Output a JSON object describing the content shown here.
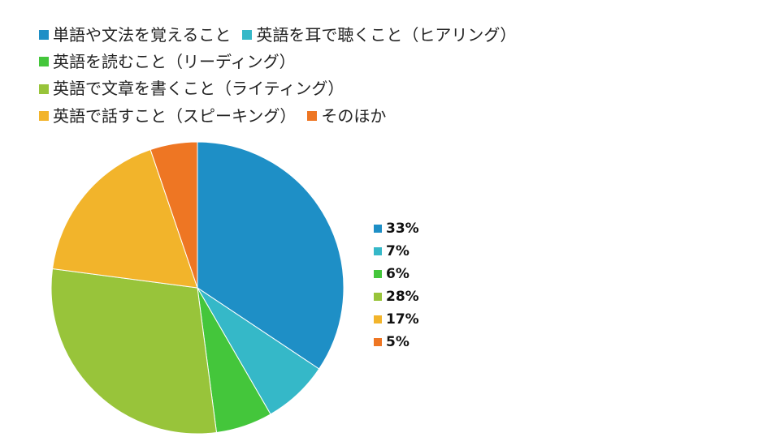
{
  "chart_data": {
    "type": "pie",
    "title": "",
    "categories": [
      "単語や文法を覚えること",
      "英語を耳で聴くこと（ヒアリング）",
      "英語を読むこと（リーディング）",
      "英語で文章を書くこと（ライティング）",
      "英語で話すこと（スピーキング）",
      "そのほか"
    ],
    "values": [
      33,
      7,
      6,
      28,
      17,
      5
    ],
    "labels": [
      "33%",
      "7%",
      "6%",
      "28%",
      "17%",
      "5%"
    ],
    "colors": [
      "#1e8fc6",
      "#35b8c8",
      "#44c63b",
      "#98c43a",
      "#f2b42b",
      "#ee7623"
    ],
    "legend_placement": "top"
  }
}
